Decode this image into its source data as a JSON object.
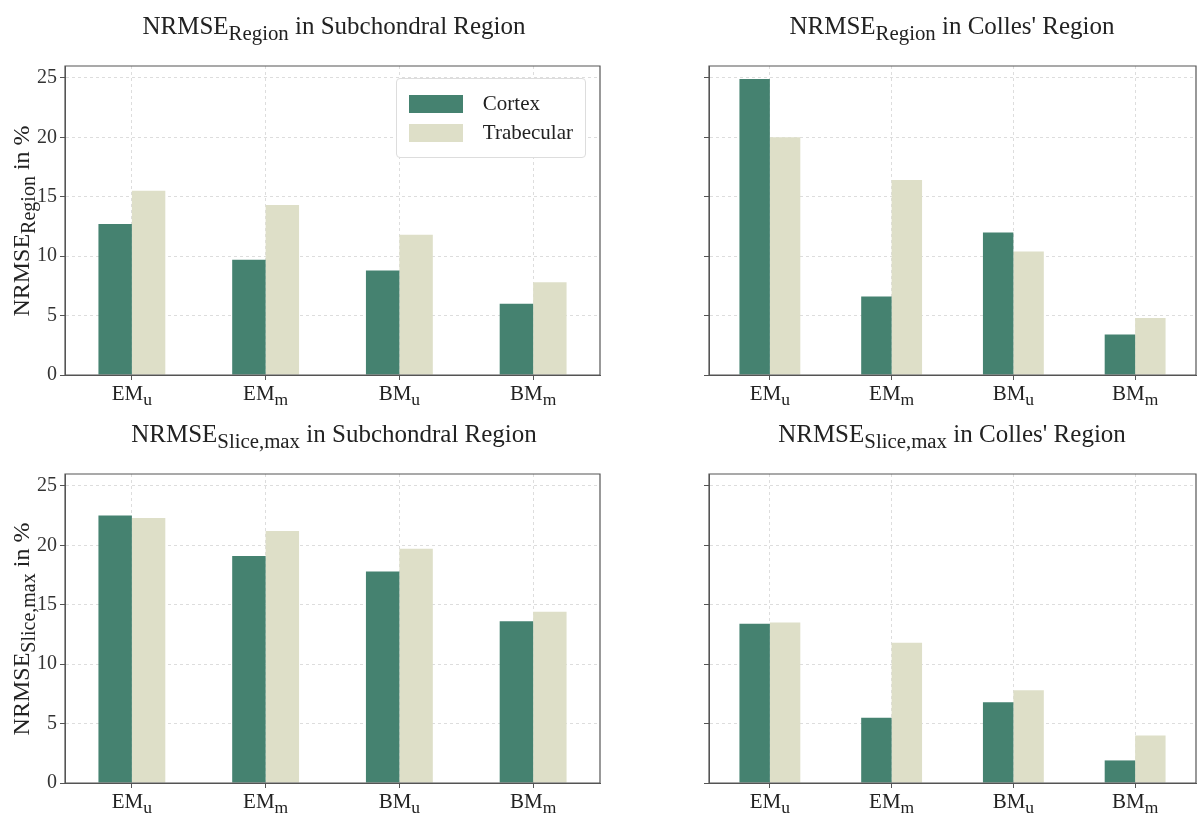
{
  "chart_data": [
    {
      "type": "bar",
      "title": "NRMSE$_{Region}$ in Subchondral Region",
      "ylabel": "NRMSE$_{Region}$ in %",
      "categories": [
        "EM$_{u}$",
        "EM$_{m}$",
        "BM$_{u}$",
        "BM$_{m}$"
      ],
      "series": [
        {
          "name": "Cortex",
          "color": "#458270",
          "values": [
            12.7,
            9.7,
            8.8,
            6.0
          ]
        },
        {
          "name": "Trabecular",
          "color": "#dedfc8",
          "values": [
            15.5,
            14.3,
            11.8,
            7.8
          ]
        }
      ],
      "ylim": [
        0,
        26
      ],
      "yticks": [
        0,
        5,
        10,
        15,
        20,
        25
      ],
      "grid": true,
      "legend": "top right"
    },
    {
      "type": "bar",
      "title": "NRMSE$_{Region}$ in Colles' Region",
      "categories": [
        "EM$_{u}$",
        "EM$_{m}$",
        "BM$_{u}$",
        "BM$_{m}$"
      ],
      "series": [
        {
          "color": "#458270",
          "values": [
            24.9,
            6.6,
            12.0,
            3.4
          ]
        },
        {
          "color": "#dedfc8",
          "values": [
            20.0,
            16.4,
            10.4,
            4.8
          ]
        }
      ],
      "ylim": [
        0,
        26
      ],
      "yticks": [
        0,
        5,
        10,
        15,
        20,
        25
      ],
      "grid": true,
      "tick_labels": "x"
    },
    {
      "type": "bar",
      "title": "NRMSE$_{Slice,max}$ in Subchondral Region",
      "ylabel": "NRMSE$_{Slice,max}$ in %",
      "categories": [
        "EM$_{u}$",
        "EM$_{m}$",
        "BM$_{u}$",
        "BM$_{m}$"
      ],
      "series": [
        {
          "color": "#458270",
          "values": [
            22.5,
            19.1,
            17.8,
            13.6
          ]
        },
        {
          "color": "#dedfc8",
          "values": [
            22.3,
            21.2,
            19.7,
            14.4
          ]
        }
      ],
      "ylim": [
        0,
        26
      ],
      "yticks": [
        0,
        5,
        10,
        15,
        20,
        25
      ],
      "grid": true
    },
    {
      "type": "bar",
      "title": "NRMSE$_{Slice,max}$ in Colles' Region",
      "categories": [
        "EM$_{u}$",
        "EM$_{m}$",
        "BM$_{u}$",
        "BM$_{m}$"
      ],
      "series": [
        {
          "color": "#458270",
          "values": [
            13.4,
            5.5,
            6.8,
            1.9
          ]
        },
        {
          "color": "#dedfc8",
          "values": [
            13.5,
            11.8,
            7.8,
            4.0
          ]
        }
      ],
      "ylim": [
        0,
        26
      ],
      "yticks": [
        0,
        5,
        10,
        15,
        20,
        25
      ],
      "grid": true,
      "tick_labels": "x"
    }
  ]
}
